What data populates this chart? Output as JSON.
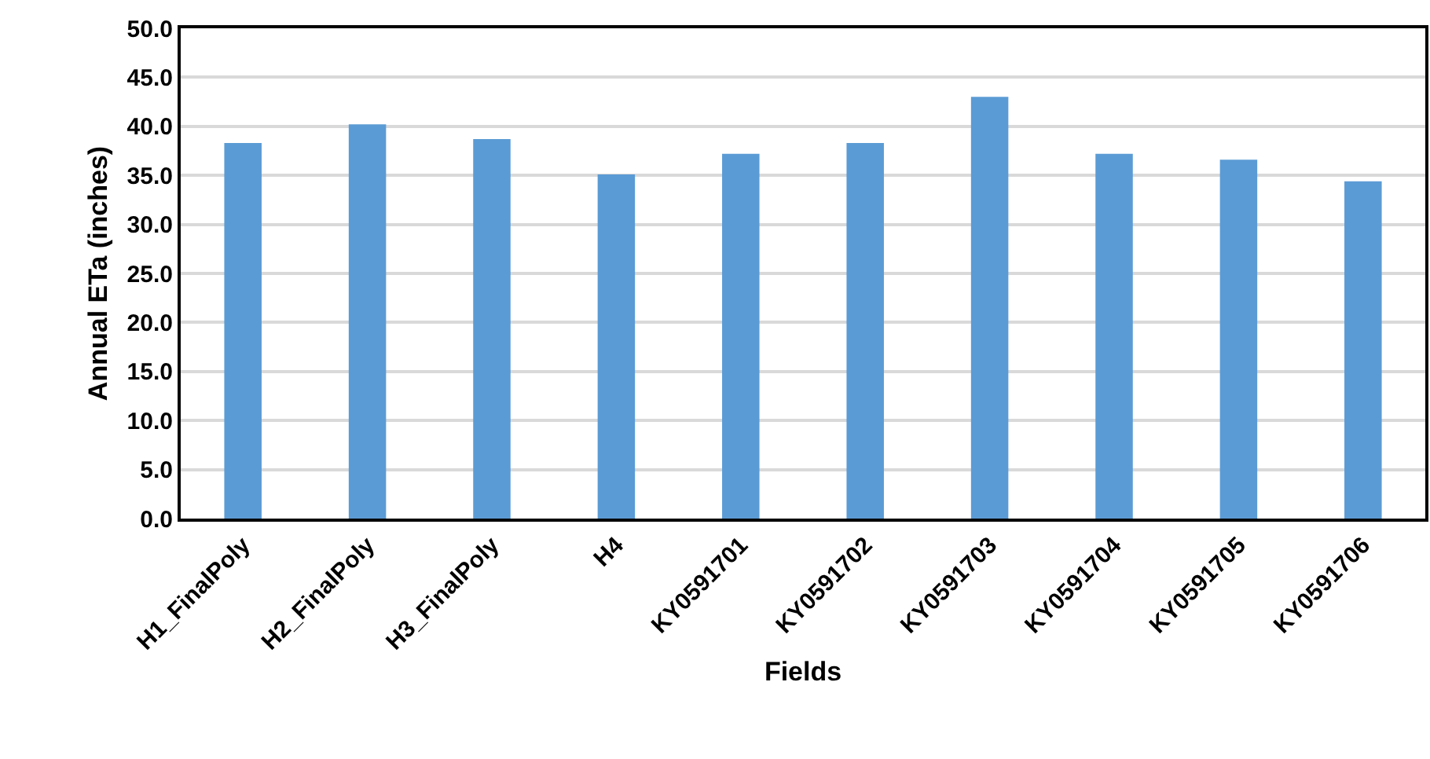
{
  "chart_data": {
    "type": "bar",
    "xlabel": "Fields",
    "ylabel": "Annual ETa (inches)",
    "categories": [
      "H1_FinalPoly",
      "H2_FinalPoly",
      "H3_FinalPoly",
      "H4",
      "KY0591701",
      "KY0591702",
      "KY0591703",
      "KY0591704",
      "KY0591705",
      "KY0591706"
    ],
    "values": [
      38.3,
      40.2,
      38.7,
      35.1,
      37.2,
      38.3,
      43.0,
      37.2,
      36.6,
      34.4
    ],
    "color": "#5b9bd5",
    "ylim": [
      0,
      50
    ],
    "yticks": [
      {
        "value": 0,
        "label": "0.0"
      },
      {
        "value": 5,
        "label": "5.0"
      },
      {
        "value": 10,
        "label": "10.0"
      },
      {
        "value": 15,
        "label": "15.0"
      },
      {
        "value": 20,
        "label": "20.0"
      },
      {
        "value": 25,
        "label": "25.0"
      },
      {
        "value": 30,
        "label": "30.0"
      },
      {
        "value": 35,
        "label": "35.0"
      },
      {
        "value": 40,
        "label": "40.0"
      },
      {
        "value": 45,
        "label": "45.0"
      },
      {
        "value": 50,
        "label": "50.0"
      }
    ],
    "grid": "y"
  }
}
